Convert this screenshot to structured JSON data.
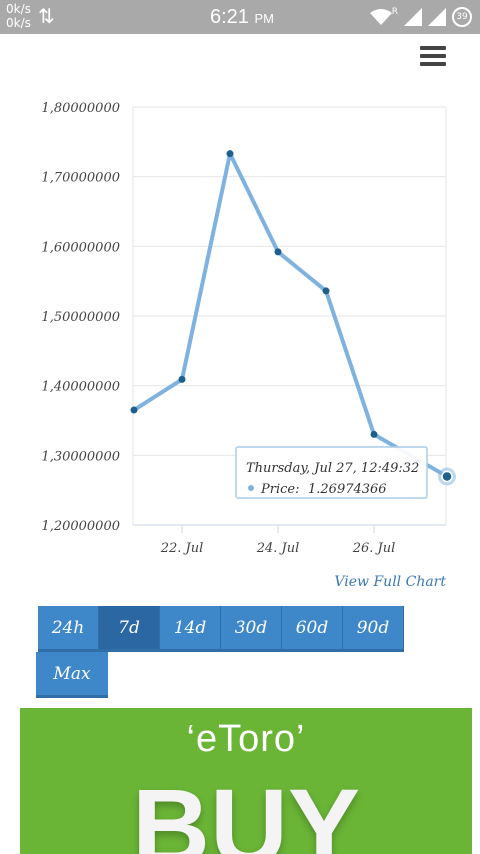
{
  "status_bar": {
    "net_up": "0k/s",
    "net_down": "0k/s",
    "time": "6:21",
    "ampm": "PM",
    "battery": "39",
    "signal_label": "R",
    "arrows_icon": "⇅"
  },
  "chart_data": {
    "type": "line",
    "x": [
      "2017-07-21",
      "2017-07-22",
      "2017-07-23",
      "2017-07-24",
      "2017-07-25",
      "2017-07-26",
      "2017-07-27"
    ],
    "y": [
      1.365,
      1.409,
      1.733,
      1.592,
      1.536,
      1.33,
      1.2697
    ],
    "y_tick_labels": [
      "1,80000000",
      "1,70000000",
      "1,60000000",
      "1,50000000",
      "1,40000000",
      "1,30000000",
      "1,20000000"
    ],
    "x_tick_labels": [
      "22. Jul",
      "24. Jul",
      "26. Jul"
    ],
    "ylim": [
      1.2,
      1.8
    ],
    "grid": true,
    "line_color": "#7fb2de",
    "point_color": "#1f5f8b"
  },
  "tooltip": {
    "date": "Thursday, Jul 27, 12:49:32",
    "series_label": "Price:",
    "value": "1.26974366"
  },
  "view_full_chart": "View Full Chart",
  "ranges": [
    "24h",
    "7d",
    "14d",
    "30d",
    "60d",
    "90d"
  ],
  "active_range": "7d",
  "max_label": "Max",
  "ad": {
    "brand": "‘eToro’",
    "headline": "BUY"
  }
}
